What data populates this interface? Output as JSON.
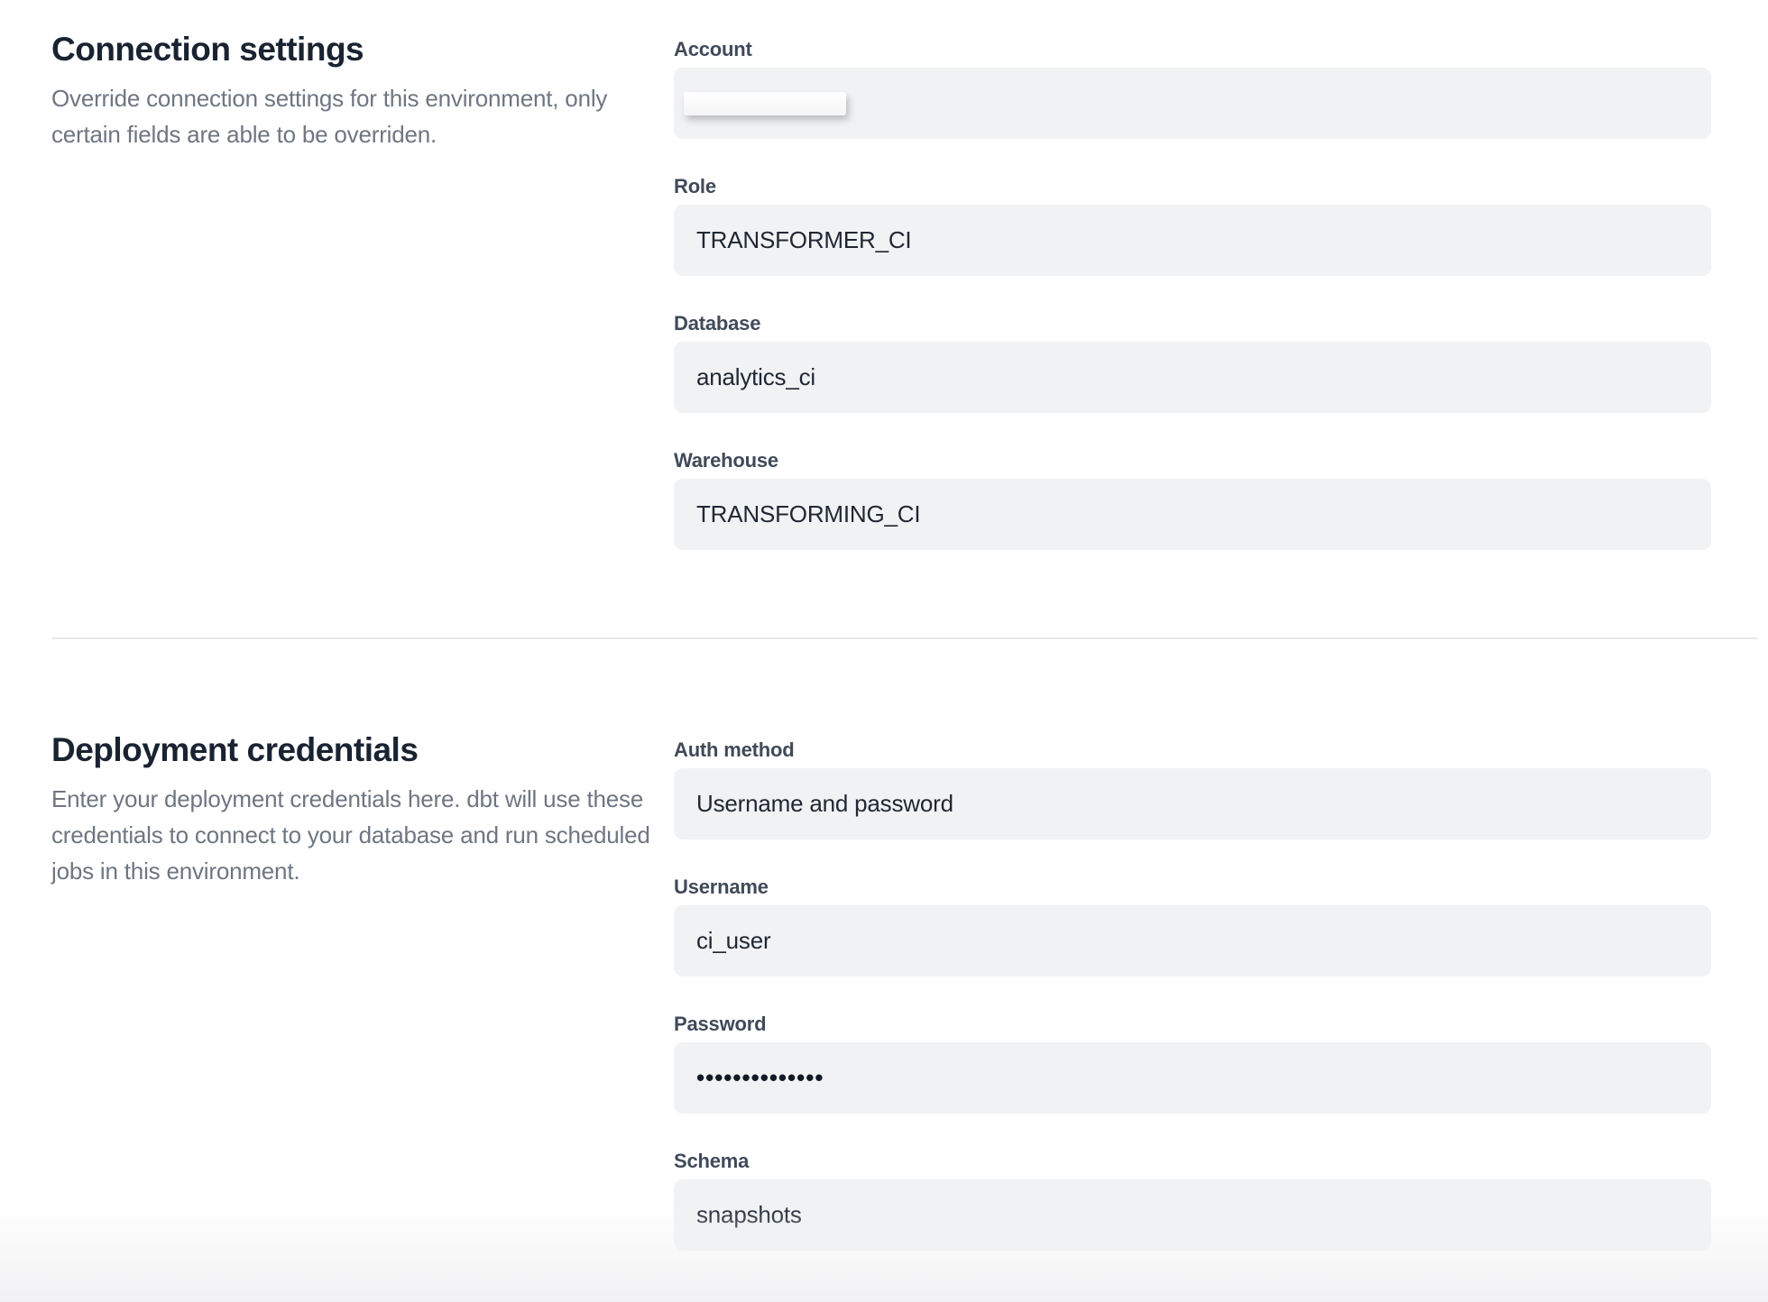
{
  "sections": [
    {
      "title": "Connection settings",
      "description": "Override connection settings for this environment, only certain fields are able to be overriden.",
      "fields": [
        {
          "label": "Account",
          "value": "",
          "redacted": true
        },
        {
          "label": "Role",
          "value": "TRANSFORMER_CI"
        },
        {
          "label": "Database",
          "value": "analytics_ci"
        },
        {
          "label": "Warehouse",
          "value": "TRANSFORMING_CI"
        }
      ]
    },
    {
      "title": "Deployment credentials",
      "description": "Enter your deployment credentials here. dbt will use these credentials to connect to your database and run scheduled jobs in this environment.",
      "fields": [
        {
          "label": "Auth method",
          "value": "Username and password"
        },
        {
          "label": "Username",
          "value": "ci_user"
        },
        {
          "label": "Password",
          "value": "••••••••••••••",
          "masked": true
        },
        {
          "label": "Schema",
          "value": "snapshots"
        }
      ]
    }
  ],
  "colors": {
    "heading": "#1a2331",
    "label": "#404a59",
    "value": "#1f2733",
    "description": "#6e7681",
    "field_background": "#f1f2f4",
    "divider": "#e8e9eb",
    "page_background": "#ffffff"
  }
}
